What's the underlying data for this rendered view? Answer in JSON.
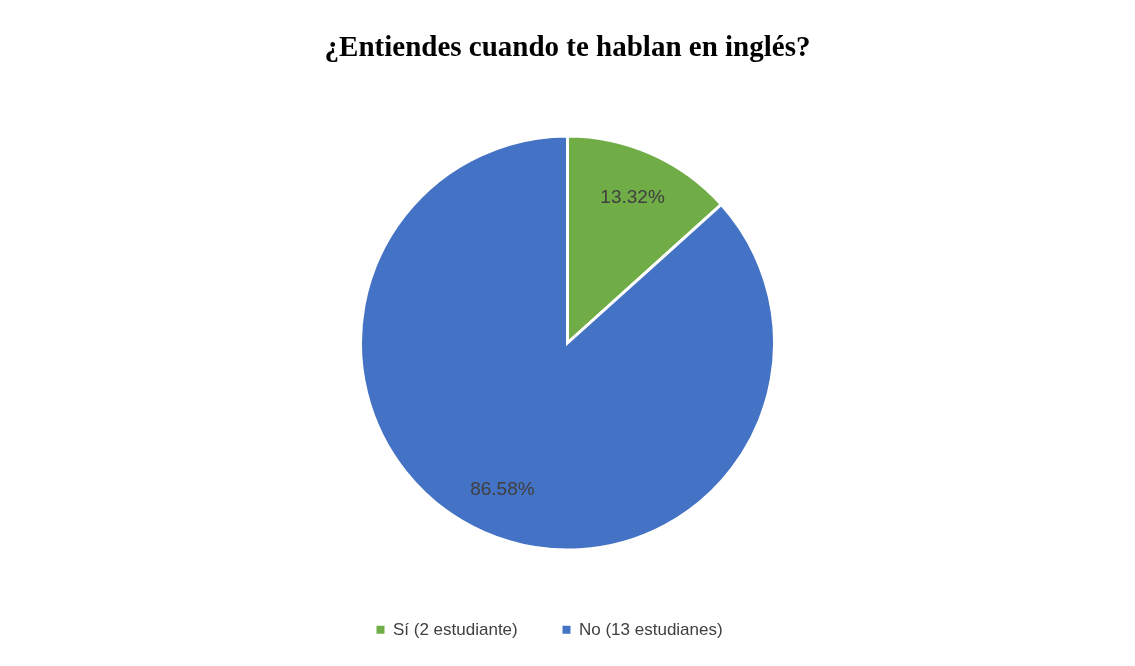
{
  "chart_data": {
    "type": "pie",
    "title": "¿Entiendes cuando te hablan en inglés?",
    "categories": [
      "Sí (2 estudiante)",
      "No (13 estudianes)"
    ],
    "values": [
      13.32,
      86.58
    ],
    "value_labels": [
      "13.32%",
      "86.58%"
    ],
    "colors": [
      "#70ad47",
      "#4472c4"
    ],
    "legend": "bottom"
  }
}
